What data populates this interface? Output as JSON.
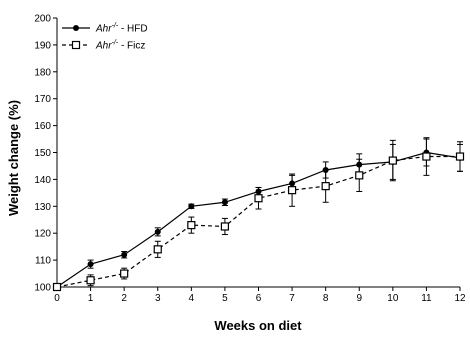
{
  "chart_data": {
    "type": "line",
    "xlabel": "Weeks on diet",
    "ylabel": "Weight change (%)",
    "xlim": [
      0,
      12
    ],
    "ylim": [
      100,
      200
    ],
    "xticks": [
      0,
      1,
      2,
      3,
      4,
      5,
      6,
      7,
      8,
      9,
      10,
      11,
      12
    ],
    "yticks": [
      100,
      110,
      120,
      130,
      140,
      150,
      160,
      170,
      180,
      190,
      200
    ],
    "grid": false,
    "legend_position": "top-left",
    "x": [
      0,
      1,
      2,
      3,
      4,
      5,
      6,
      7,
      8,
      9,
      10,
      11,
      12
    ],
    "series": [
      {
        "name_italic": "Ahr",
        "name_sup": "-/-",
        "name_suffix": " - HFD",
        "marker": "filled-circle",
        "line_style": "solid",
        "color": "#000000",
        "values": [
          100,
          108.5,
          112,
          120.5,
          130,
          131.5,
          135.5,
          138.5,
          143.5,
          145.5,
          146.5,
          150,
          148
        ],
        "errors": [
          0,
          1.5,
          1.2,
          1.5,
          0.8,
          1.2,
          1.5,
          3,
          3,
          4,
          6.5,
          5,
          5
        ]
      },
      {
        "name_italic": "Ahr",
        "name_sup": "-/-",
        "name_suffix": " - Ficz",
        "marker": "open-square",
        "line_style": "dashed",
        "color": "#000000",
        "values": [
          100,
          102.5,
          105,
          114,
          123,
          122.5,
          133,
          136,
          137.5,
          141.5,
          147,
          148.5,
          148.5
        ],
        "errors": [
          0,
          2,
          2,
          3,
          3,
          3,
          4,
          6,
          6,
          6,
          7.5,
          7,
          5.5
        ]
      }
    ]
  }
}
